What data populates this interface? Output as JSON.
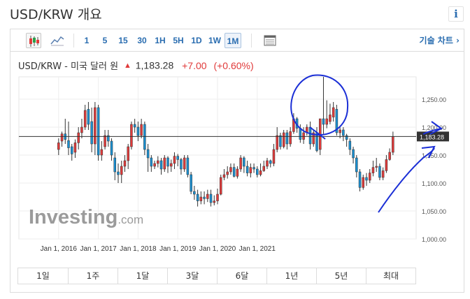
{
  "page": {
    "title": "USD/KRW 개요",
    "info_label": "i"
  },
  "toolbar": {
    "timeframes": [
      "1",
      "5",
      "15",
      "30",
      "1H",
      "5H",
      "1D",
      "1W",
      "1M"
    ],
    "active_timeframe": "1M",
    "chart_type_icons": [
      "candlestick-icon",
      "line-chart-icon"
    ],
    "table_icon": "table-icon",
    "technical_chart_label": "기술 차트 ›"
  },
  "quote": {
    "name": "USD/KRW - 미국 달러 원",
    "arrow": "▲",
    "price": "1,183.28",
    "change": "+7.00",
    "change_pct": "(+0.60%)"
  },
  "ranges": [
    "1일",
    "1주",
    "1달",
    "3달",
    "6달",
    "1년",
    "5년",
    "최대"
  ],
  "colors": {
    "up": "#e03a3a",
    "down": "#1a8fd0",
    "accent": "#2a6db0",
    "annotation": "#1b2fd6"
  },
  "watermark": {
    "brand": "Investing",
    "suffix": ".com"
  },
  "chart_data": {
    "type": "candlestick",
    "x_tick_labels": [
      "Jan 1, 2016",
      "Jan 1, 2017",
      "Jan 1, 2018",
      "Jan 1, 2019",
      "Jan 1, 2020",
      "Jan 1, 2021"
    ],
    "y_tick_labels": [
      "1,250.00",
      "1,200.00",
      "1,150.00",
      "1,100.00",
      "1,050.00",
      "1,000.00"
    ],
    "ylim": [
      1000,
      1290
    ],
    "current_price": 1183.28,
    "current_price_label": "1,183.28",
    "y_axis_side": "right",
    "grid": true,
    "candles": [
      [
        1172,
        1160,
        1180,
        1150
      ],
      [
        1188,
        1175,
        1192,
        1165
      ],
      [
        1178,
        1188,
        1215,
        1170
      ],
      [
        1163,
        1176,
        1210,
        1150
      ],
      [
        1152,
        1165,
        1170,
        1140
      ],
      [
        1172,
        1155,
        1178,
        1145
      ],
      [
        1190,
        1172,
        1200,
        1160
      ],
      [
        1200,
        1190,
        1215,
        1180
      ],
      [
        1230,
        1200,
        1240,
        1195
      ],
      [
        1205,
        1232,
        1245,
        1195
      ],
      [
        1170,
        1210,
        1235,
        1155
      ],
      [
        1235,
        1170,
        1245,
        1150
      ],
      [
        1150,
        1235,
        1240,
        1140
      ],
      [
        1160,
        1150,
        1175,
        1140
      ],
      [
        1185,
        1165,
        1195,
        1160
      ],
      [
        1175,
        1185,
        1195,
        1165
      ],
      [
        1150,
        1175,
        1180,
        1140
      ],
      [
        1120,
        1145,
        1155,
        1105
      ],
      [
        1115,
        1120,
        1135,
        1100
      ],
      [
        1130,
        1115,
        1140,
        1100
      ],
      [
        1140,
        1130,
        1150,
        1120
      ],
      [
        1165,
        1140,
        1170,
        1125
      ],
      [
        1205,
        1165,
        1210,
        1160
      ],
      [
        1200,
        1205,
        1215,
        1190
      ],
      [
        1185,
        1200,
        1210,
        1175
      ],
      [
        1205,
        1185,
        1215,
        1180
      ],
      [
        1160,
        1205,
        1210,
        1150
      ],
      [
        1145,
        1160,
        1170,
        1120
      ],
      [
        1130,
        1145,
        1150,
        1120
      ],
      [
        1135,
        1130,
        1140,
        1125
      ],
      [
        1140,
        1135,
        1148,
        1128
      ],
      [
        1125,
        1140,
        1145,
        1115
      ],
      [
        1145,
        1125,
        1150,
        1120
      ],
      [
        1130,
        1145,
        1148,
        1118
      ],
      [
        1135,
        1130,
        1142,
        1120
      ],
      [
        1148,
        1135,
        1155,
        1125
      ],
      [
        1142,
        1148,
        1152,
        1130
      ],
      [
        1125,
        1142,
        1145,
        1115
      ],
      [
        1145,
        1125,
        1150,
        1120
      ],
      [
        1115,
        1145,
        1150,
        1110
      ],
      [
        1085,
        1115,
        1120,
        1080
      ],
      [
        1080,
        1085,
        1095,
        1070
      ],
      [
        1068,
        1080,
        1088,
        1058
      ],
      [
        1075,
        1068,
        1085,
        1062
      ],
      [
        1072,
        1075,
        1085,
        1062
      ],
      [
        1080,
        1072,
        1088,
        1066
      ],
      [
        1065,
        1080,
        1088,
        1058
      ],
      [
        1068,
        1065,
        1078,
        1060
      ],
      [
        1080,
        1068,
        1090,
        1062
      ],
      [
        1110,
        1080,
        1115,
        1078
      ],
      [
        1115,
        1110,
        1125,
        1105
      ],
      [
        1120,
        1115,
        1130,
        1108
      ],
      [
        1128,
        1120,
        1135,
        1115
      ],
      [
        1112,
        1128,
        1135,
        1110
      ],
      [
        1125,
        1112,
        1130,
        1108
      ],
      [
        1145,
        1125,
        1150,
        1120
      ],
      [
        1130,
        1145,
        1148,
        1118
      ],
      [
        1118,
        1130,
        1140,
        1112
      ],
      [
        1128,
        1118,
        1135,
        1110
      ],
      [
        1125,
        1128,
        1135,
        1118
      ],
      [
        1115,
        1125,
        1130,
        1110
      ],
      [
        1122,
        1115,
        1135,
        1112
      ],
      [
        1130,
        1122,
        1140,
        1120
      ],
      [
        1140,
        1130,
        1145,
        1125
      ],
      [
        1135,
        1140,
        1142,
        1128
      ],
      [
        1160,
        1135,
        1170,
        1130
      ],
      [
        1185,
        1160,
        1200,
        1155
      ],
      [
        1165,
        1185,
        1190,
        1160
      ],
      [
        1190,
        1165,
        1195,
        1162
      ],
      [
        1170,
        1190,
        1195,
        1160
      ],
      [
        1192,
        1170,
        1200,
        1165
      ],
      [
        1215,
        1192,
        1225,
        1188
      ],
      [
        1198,
        1215,
        1218,
        1190
      ],
      [
        1178,
        1198,
        1205,
        1172
      ],
      [
        1190,
        1178,
        1200,
        1170
      ],
      [
        1200,
        1190,
        1205,
        1185
      ],
      [
        1170,
        1200,
        1210,
        1160
      ],
      [
        1190,
        1170,
        1195,
        1165
      ],
      [
        1158,
        1190,
        1200,
        1155
      ],
      [
        1215,
        1160,
        1215,
        1150
      ],
      [
        1205,
        1215,
        1290,
        1188
      ],
      [
        1215,
        1205,
        1248,
        1198
      ],
      [
        1222,
        1210,
        1242,
        1205
      ],
      [
        1235,
        1218,
        1245,
        1210
      ],
      [
        1190,
        1232,
        1240,
        1185
      ],
      [
        1195,
        1190,
        1200,
        1180
      ],
      [
        1185,
        1195,
        1200,
        1175
      ],
      [
        1178,
        1185,
        1188,
        1165
      ],
      [
        1160,
        1175,
        1180,
        1150
      ],
      [
        1145,
        1160,
        1165,
        1135
      ],
      [
        1120,
        1145,
        1150,
        1110
      ],
      [
        1092,
        1120,
        1125,
        1085
      ],
      [
        1110,
        1092,
        1115,
        1088
      ],
      [
        1105,
        1110,
        1118,
        1095
      ],
      [
        1118,
        1105,
        1125,
        1100
      ],
      [
        1128,
        1118,
        1140,
        1112
      ],
      [
        1130,
        1128,
        1145,
        1120
      ],
      [
        1110,
        1130,
        1135,
        1105
      ],
      [
        1122,
        1110,
        1128,
        1105
      ],
      [
        1142,
        1122,
        1150,
        1118
      ],
      [
        1155,
        1142,
        1162,
        1140
      ],
      [
        1183,
        1155,
        1192,
        1150
      ]
    ],
    "x_range": [
      -12,
      108
    ]
  }
}
